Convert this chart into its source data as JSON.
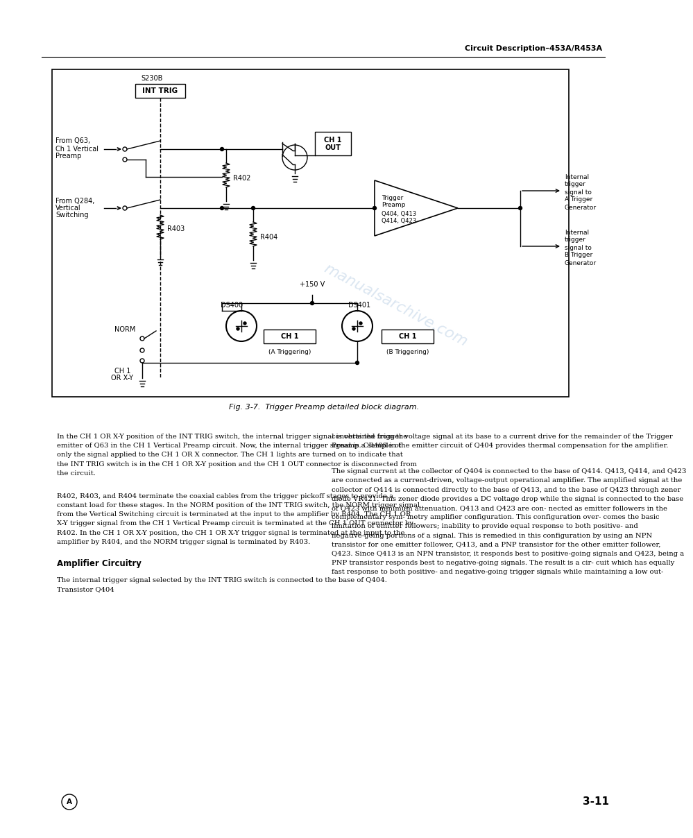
{
  "page_header": "Circuit Description–453A/R453A",
  "page_number": "3-11",
  "figure_caption": "Fig. 3-7.  Trigger Preamp detailed block diagram.",
  "watermark_text": "manualsarchive.com",
  "text_col1_para1": "    In the CH 1 OR X-Y position of the INT TRIG switch, the internal trigger signal is obtained from the emitter of Q63 in the CH 1 Vertical Preamp circuit. Now, the internal trigger signal is a sample of only the signal applied to the CH 1 OR X connector. The CH 1 lights are turned on to indicate that the INT TRIG switch is in the CH 1 OR X-Y position and the CH 1 OUT connector is disconnected from the circuit.",
  "text_col1_para2": "    R402, R403, and R404 terminate the coaxial cables from the trigger pickoff stages to provide a constant load for these stages. In the NORM position of the INT TRIG switch, the NORM trigger signal from the Vertical Switching circuit is terminated at the input to the amplifier by R404. The CH 1 OR X-Y trigger signal from the CH 1 Vertical Preamp circuit is terminated at the CH 1 OUT connector by R402. In the CH 1 OR X-Y position, the CH 1 OR X-Y trigger signal is terminated at the input to the amplifier by R404, and the NORM trigger signal is terminated by R403.",
  "text_col1_heading": "Amplifier Circuitry",
  "text_col1_para3": "    The internal trigger signal selected by the INT TRIG switch is connected to the base of Q404. Transistor Q404",
  "text_col2_para1": "converts the trigger voltage signal at its base to a current drive for the remainder of the Trigger Preamp. CR408 in the emitter circuit of Q404 provides thermal compensation for the amplifier.",
  "text_col2_para2": "    The signal current at the collector of Q404 is connected to the base of Q414. Q413, Q414, and Q423 are connected as  a current-driven, voltage-output operational amplifier. The amplified signal at the collector of Q414 is connected directly to the base of Q413, and  to the base of Q423 through zener diode VR421. This zener diode provides a DC voltage drop while the signal is connected to the base of Q423 with minimum attenuation. Q413 and Q423 are con- nected as emitter followers in the complementary sym- metry amplifier configuration.  This configuration over- comes the basic limitation of emitter followers; inability to provide equal response to both positive- and negative-going portions of a signal. This is remedied in this configuration by using an NPN transistor for one emitter follower, Q413, and a PNP transistor for the other emitter follower, Q423. Since  Q413  is an NPN transistor, it responds best to positive-going signals and  Q423,  being a PNP transistor responds best to negative-going signals. The result is a cir- cuit which has equally  fast response to both positive- and negative-going trigger signals while maintaining a low out-",
  "bg_color": "#ffffff",
  "text_color": "#000000"
}
